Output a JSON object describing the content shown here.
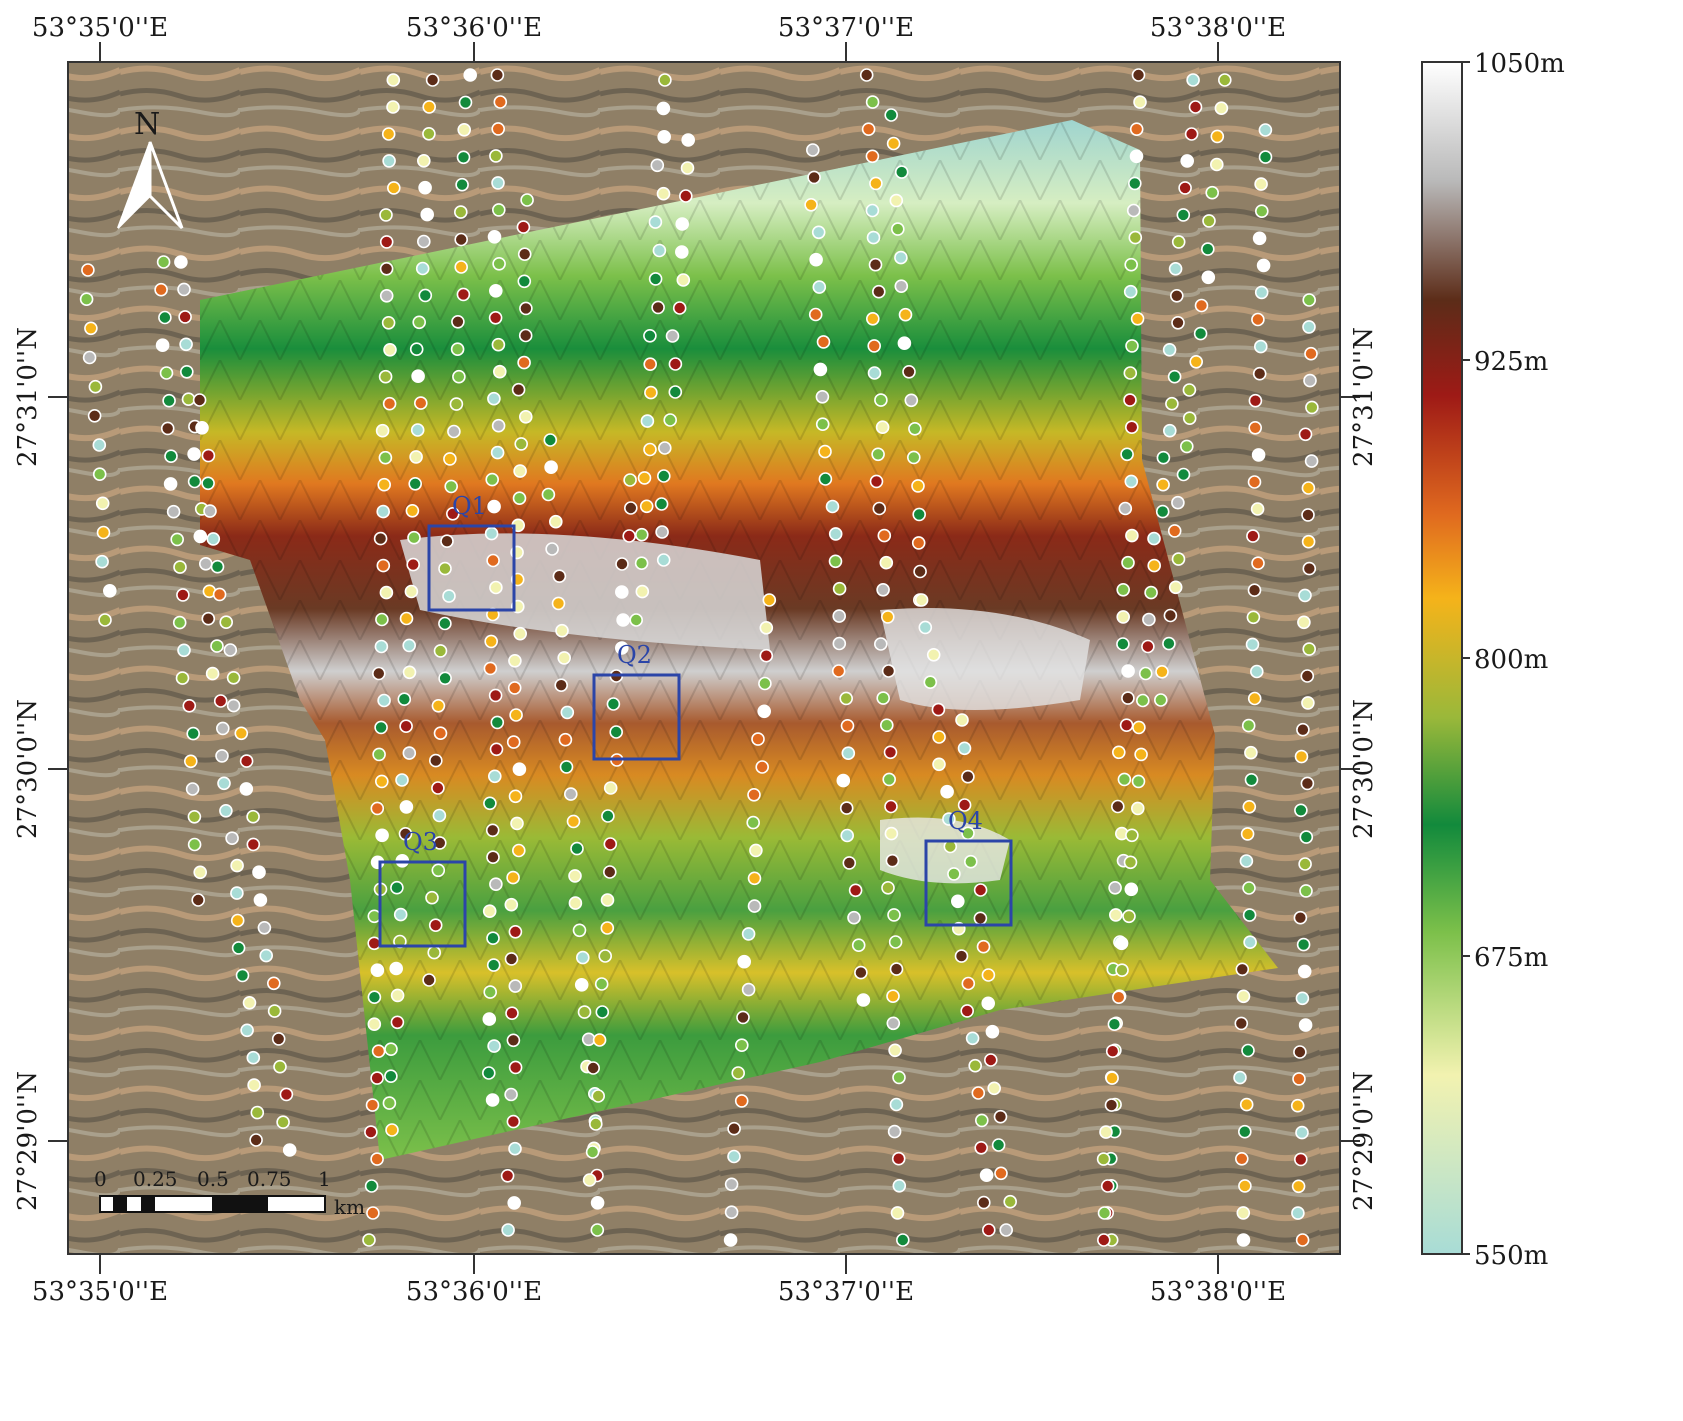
{
  "longitude_labels": [
    "53°35'0''E",
    "53°36'0''E",
    "53°37'0''E",
    "53°38'0''E"
  ],
  "latitude_labels": [
    "27°31'0''N",
    "27°30'0''N",
    "27°29'0''N"
  ],
  "north_arrow": {
    "label": "N",
    "icon": "north-arrow-icon"
  },
  "scale_bar": {
    "ticks": [
      "0",
      "0.25",
      "0.5",
      "0.75",
      "1"
    ],
    "unit": "km"
  },
  "colorbar": {
    "labels": [
      "1050m",
      "925m",
      "800m",
      "675m",
      "550m"
    ],
    "stops": [
      "#a8dcd6",
      "#f2f2b0",
      "#7cc04a",
      "#128a3c",
      "#9ab83a",
      "#f5b31a",
      "#e06a1f",
      "#9e1a16",
      "#5c2c18",
      "#b9b9b9",
      "#ffffff"
    ]
  },
  "study_areas": [
    {
      "label": "Q1"
    },
    {
      "label": "Q2"
    },
    {
      "label": "Q3"
    },
    {
      "label": "Q4"
    }
  ],
  "colors": {
    "box": "#2b45a8",
    "frame": "#333333",
    "point_stroke": "#ffffff"
  }
}
